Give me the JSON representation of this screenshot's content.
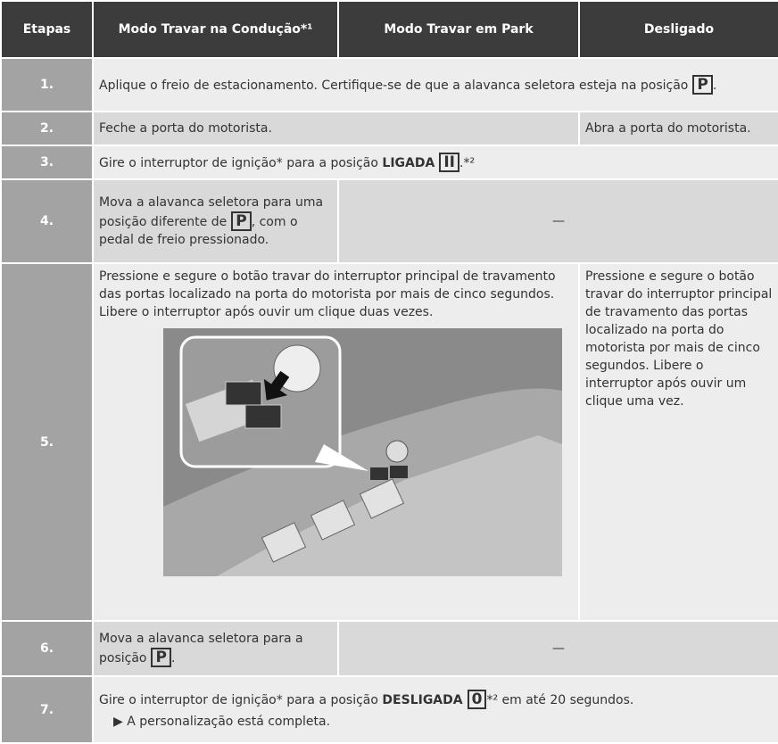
{
  "table": {
    "header": [
      "Etapas",
      "Modo Travar na Condução*¹",
      "Modo Travar em Park",
      "Desligado"
    ],
    "rows": [
      {
        "step": "1.",
        "cells": [
          {
            "text": "Aplique o freio de estacionamento. Certifique-se de que a alavanca seletora esteja na posição",
            "key": "P",
            "after": "."
          }
        ]
      },
      {
        "step": "2.",
        "cells": [
          {
            "text": "Feche a porta do motorista."
          },
          {
            "text": "Abra a porta do motorista."
          }
        ]
      },
      {
        "step": "3.",
        "cells": [
          {
            "text": "Gire o interruptor de ignição* para a posição",
            "bold": "LIGADA",
            "key": "II",
            "after": ".*²"
          }
        ]
      },
      {
        "step": "4.",
        "cells": [
          {
            "text": "Mova a alavanca seletora para uma posição diferente de",
            "key": "P",
            "after": ", com o pedal de freio pressionado."
          },
          {
            "text": "—"
          }
        ]
      },
      {
        "step": "5.",
        "cells": [
          {
            "text": "Pressione e segure o botão travar do interruptor principal de travamento das portas localizado na porta do motorista por mais de cinco segundos. Libere o interruptor após ouvir um clique duas vezes."
          },
          {
            "text": "Pressione e segure o botão travar do interruptor principal de travamento das portas localizado na porta do motorista por mais de cinco segundos. Libere o interruptor após ouvir um clique uma vez."
          }
        ]
      },
      {
        "step": "6.",
        "cells": [
          {
            "text": "Mova a alavanca seletora para a posição",
            "key": "P",
            "after": "."
          },
          {
            "text": "—"
          }
        ]
      },
      {
        "step": "7.",
        "cells": [
          {
            "text": "Gire o interruptor de ignição* para a posição",
            "bold": "DESLIGADA",
            "key": "0",
            "after": "*² em até 20 segundos.",
            "note": "A personalização está completa."
          }
        ]
      }
    ]
  }
}
